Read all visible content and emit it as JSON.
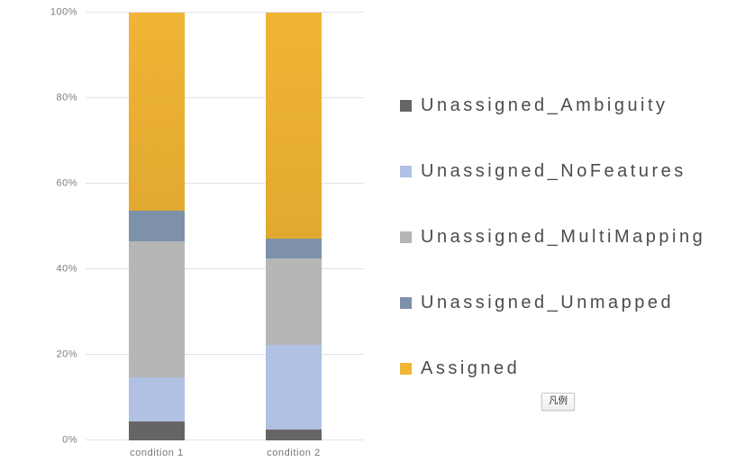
{
  "chart_data": {
    "type": "bar",
    "variant": "stacked-100-percent",
    "title": "",
    "xlabel": "",
    "ylabel": "",
    "categories": [
      "condition 1",
      "condition 2"
    ],
    "series": [
      {
        "name": "Unassigned_Ambiguity",
        "color": "#676564",
        "values": [
          4.5,
          2.5
        ]
      },
      {
        "name": "Unassigned_NoFeatures",
        "color": "#b0c1e3",
        "values": [
          10.2,
          19.8
        ]
      },
      {
        "name": "Unassigned_MultiMapping",
        "color": "#b6b6b6",
        "values": [
          31.9,
          20.2
        ]
      },
      {
        "name": "Unassigned_Unmapped",
        "color": "#7e91aa",
        "values": [
          7.1,
          4.7
        ]
      },
      {
        "name": "Assigned",
        "color": "#f1b535",
        "color_bottom": "#e2a931",
        "values": [
          46.3,
          52.8
        ]
      }
    ],
    "y_ticks": [
      "0%",
      "20%",
      "40%",
      "60%",
      "80%",
      "100%"
    ],
    "ylim": [
      0,
      100
    ],
    "grid": true,
    "legend_position": "right"
  },
  "legend_toggle": {
    "label": "凡例"
  },
  "colors": {
    "background": "#ffffff",
    "gridline": "#e2e2eb",
    "axis_label": "#7d7d7d",
    "legend_text": "#4c4c4c"
  }
}
